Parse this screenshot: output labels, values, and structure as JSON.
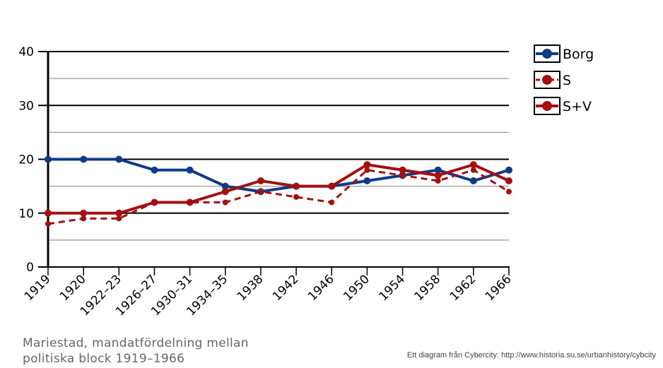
{
  "chart_data": {
    "type": "line",
    "categories": [
      "1919",
      "1920",
      "1922–23",
      "1926–27",
      "1930–31",
      "1934–35",
      "1938",
      "1942",
      "1946",
      "1950",
      "1954",
      "1958",
      "1962",
      "1966"
    ],
    "series": [
      {
        "name": "Borg",
        "color": "#0f3a8a",
        "dash": false,
        "values": [
          20,
          20,
          20,
          18,
          18,
          15,
          14,
          15,
          15,
          16,
          17,
          18,
          16,
          18
        ]
      },
      {
        "name": "S",
        "color": "#a50f0f",
        "dash": true,
        "values": [
          8,
          9,
          9,
          12,
          12,
          12,
          14,
          13,
          12,
          18,
          17,
          16,
          18,
          14
        ]
      },
      {
        "name": "S+V",
        "color": "#a50f0f",
        "dash": false,
        "values": [
          10,
          10,
          10,
          12,
          12,
          14,
          16,
          15,
          15,
          19,
          18,
          17,
          19,
          16
        ]
      }
    ],
    "yticks": [
      "0",
      "10",
      "20",
      "30",
      "40"
    ],
    "ylim": [
      0,
      40
    ],
    "grid": true,
    "legend": "right",
    "title": "Mariestad, mandatfördelning mellan politiska block 1919–1966"
  },
  "caption": {
    "line1": "Mariestad, mandatfördelning mellan",
    "line2": "politiska block 1919–1966"
  },
  "credit": "Ett diagram från Cybercity: http://www.historia.su.se/urbanhistory/cybcity"
}
